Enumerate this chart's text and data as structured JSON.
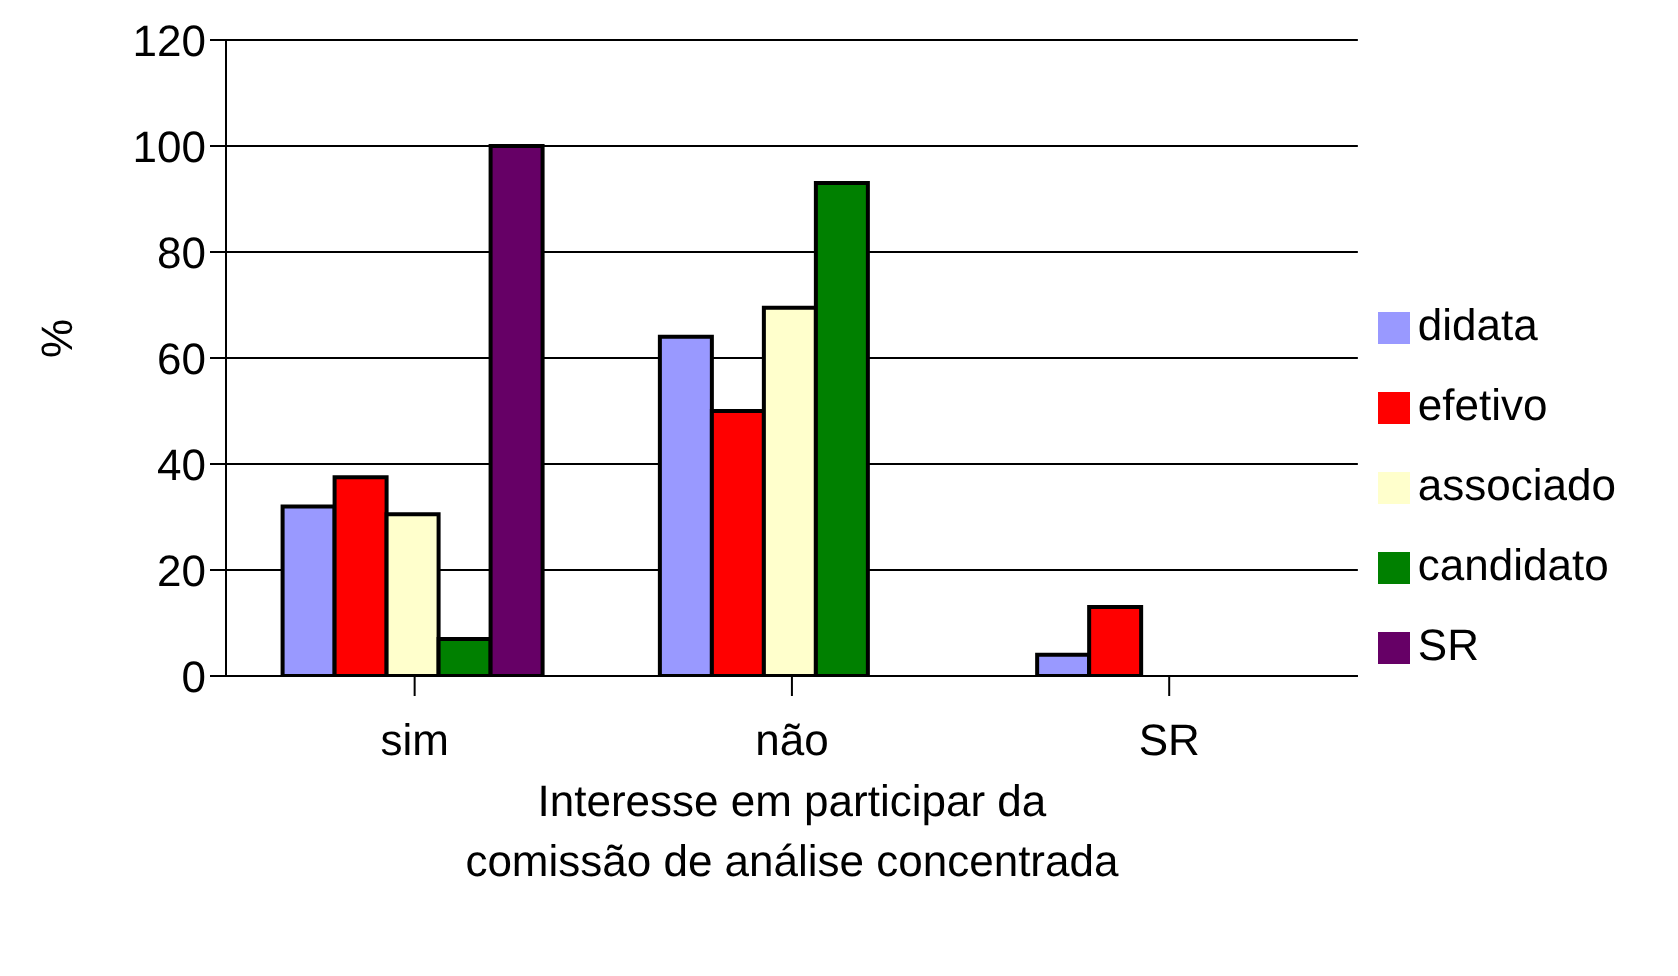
{
  "chart_data": {
    "type": "bar",
    "xlabel": "Interesse em participar da\ncomissão de análise concentrada",
    "ylabel": "%",
    "categories": [
      "sim",
      "não",
      "SR"
    ],
    "series": [
      {
        "name": "didata",
        "color": "#9999ff",
        "values": [
          32,
          64,
          4
        ]
      },
      {
        "name": "efetivo",
        "color": "#ff0000",
        "values": [
          37.5,
          50,
          13
        ]
      },
      {
        "name": "associado",
        "color": "#ffffcc",
        "values": [
          30.5,
          69.5,
          0
        ]
      },
      {
        "name": "candidato",
        "color": "#008000",
        "values": [
          7,
          93,
          0
        ]
      },
      {
        "name": "SR",
        "color": "#660066",
        "values": [
          100,
          0,
          0
        ]
      }
    ],
    "ylim": [
      0,
      120
    ],
    "yticks": [
      0,
      20,
      40,
      60,
      80,
      100,
      120
    ],
    "grid": "y",
    "legend": "right"
  }
}
